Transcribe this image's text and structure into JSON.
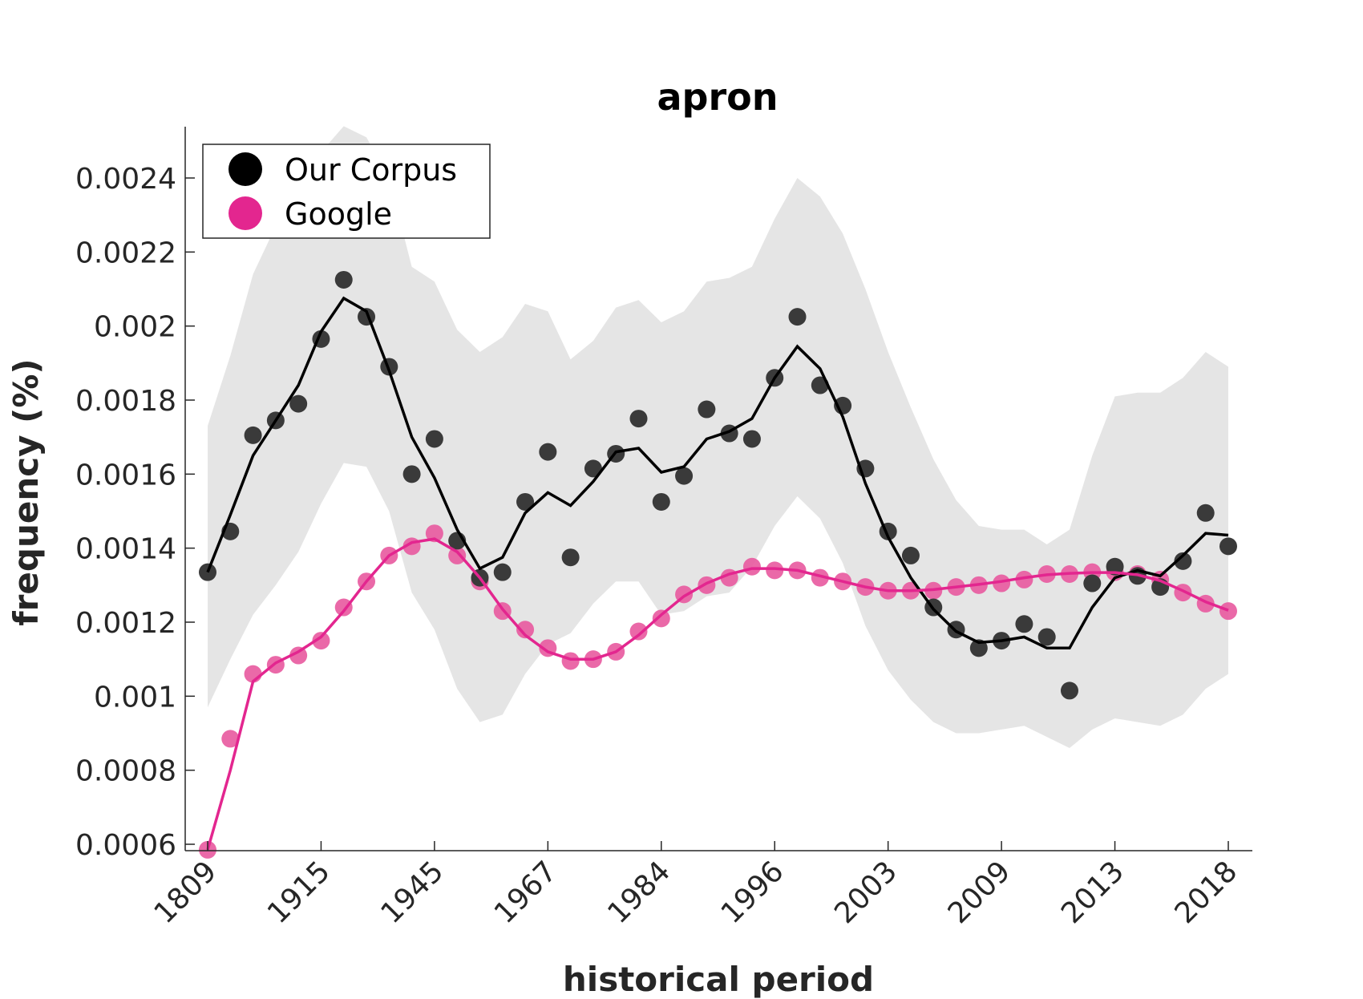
{
  "chart_data": {
    "type": "line",
    "title": "apron",
    "xlabel": "historical period",
    "ylabel": "frequency (%)",
    "ylim": [
      0.00058,
      0.00254
    ],
    "yticks": [
      0.0006,
      0.0008,
      0.001,
      0.0012,
      0.0014,
      0.0016,
      0.0018,
      0.002,
      0.0022,
      0.0024
    ],
    "ytick_labels": [
      "0.0006",
      "0.0008",
      "0.001",
      "0.0012",
      "0.0014",
      "0.0016",
      "0.0018",
      "0.002",
      "0.0022",
      "0.0024"
    ],
    "xtick_labels": [
      "1809",
      "1915",
      "1945",
      "1967",
      "1984",
      "1996",
      "2003",
      "2009",
      "2013",
      "2018"
    ],
    "xtick_positions": [
      0,
      5,
      10,
      15,
      20,
      25,
      30,
      35,
      40,
      45
    ],
    "n_points": 46,
    "grid": false,
    "legend_position": "top-left",
    "series": [
      {
        "name": "Our Corpus",
        "color": "#000000",
        "marker_color": "#3a3a3a",
        "points": [
          0.001335,
          0.001445,
          0.001705,
          0.001745,
          0.00179,
          0.001965,
          0.002125,
          0.002025,
          0.00189,
          0.0016,
          0.001695,
          0.00142,
          0.00132,
          0.001335,
          0.001525,
          0.00166,
          0.001375,
          0.001615,
          0.001655,
          0.00175,
          0.001525,
          0.001595,
          0.001775,
          0.00171,
          0.001695,
          0.00186,
          0.002025,
          0.00184,
          0.001785,
          0.001615,
          0.001445,
          0.00138,
          0.00124,
          0.00118,
          0.00113,
          0.00115,
          0.001195,
          0.00116,
          0.001015,
          0.001305,
          0.00135,
          0.001325,
          0.001295,
          0.001365,
          0.001495,
          0.001405
        ],
        "line": [
          0.001335,
          0.00149,
          0.00165,
          0.001745,
          0.00184,
          0.001985,
          0.002075,
          0.00204,
          0.00188,
          0.0017,
          0.00159,
          0.00145,
          0.001345,
          0.001375,
          0.001495,
          0.00155,
          0.001515,
          0.00158,
          0.00166,
          0.00167,
          0.001605,
          0.00162,
          0.001695,
          0.001715,
          0.00175,
          0.00186,
          0.001945,
          0.001885,
          0.001755,
          0.001575,
          0.00143,
          0.00132,
          0.001235,
          0.001175,
          0.001145,
          0.00115,
          0.00116,
          0.00113,
          0.00113,
          0.00124,
          0.00132,
          0.00134,
          0.001325,
          0.00138,
          0.00144,
          0.001435
        ],
        "band_upper": [
          0.00173,
          0.00192,
          0.00214,
          0.00227,
          0.00238,
          0.00247,
          0.00254,
          0.00251,
          0.0024,
          0.00216,
          0.00212,
          0.00199,
          0.00193,
          0.00197,
          0.00206,
          0.00204,
          0.00191,
          0.00196,
          0.00205,
          0.00207,
          0.00201,
          0.00204,
          0.00212,
          0.00213,
          0.00216,
          0.00229,
          0.0024,
          0.00235,
          0.00225,
          0.0021,
          0.00193,
          0.00178,
          0.00164,
          0.00153,
          0.00146,
          0.00145,
          0.00145,
          0.00141,
          0.00145,
          0.00165,
          0.00181,
          0.00182,
          0.00182,
          0.00186,
          0.00193,
          0.00189
        ],
        "band_lower": [
          0.00097,
          0.0011,
          0.00122,
          0.0013,
          0.00139,
          0.00152,
          0.00163,
          0.00162,
          0.0015,
          0.00128,
          0.00118,
          0.00102,
          0.00093,
          0.00095,
          0.00106,
          0.00114,
          0.00117,
          0.00125,
          0.00131,
          0.00131,
          0.00122,
          0.00123,
          0.00127,
          0.00128,
          0.00135,
          0.00146,
          0.00154,
          0.00148,
          0.00136,
          0.00119,
          0.00107,
          0.00099,
          0.00093,
          0.0009,
          0.0009,
          0.00091,
          0.00092,
          0.00089,
          0.00086,
          0.00091,
          0.00094,
          0.00093,
          0.00092,
          0.00095,
          0.00102,
          0.00106
        ]
      },
      {
        "name": "Google",
        "color": "#e3268f",
        "marker_color": "#e8599f",
        "points": [
          0.000585,
          0.000885,
          0.00106,
          0.001085,
          0.00111,
          0.00115,
          0.00124,
          0.00131,
          0.00138,
          0.001405,
          0.00144,
          0.00138,
          0.00131,
          0.00123,
          0.00118,
          0.00113,
          0.001095,
          0.0011,
          0.00112,
          0.001175,
          0.00121,
          0.001275,
          0.0013,
          0.00132,
          0.00135,
          0.00134,
          0.00134,
          0.00132,
          0.00131,
          0.001295,
          0.001285,
          0.001285,
          0.001285,
          0.001295,
          0.0013,
          0.001305,
          0.001315,
          0.00133,
          0.00133,
          0.001335,
          0.001335,
          0.00133,
          0.001315,
          0.00128,
          0.00125,
          0.00123
        ],
        "line": [
          0.000585,
          0.0008,
          0.00104,
          0.00109,
          0.00112,
          0.00116,
          0.00123,
          0.00131,
          0.00138,
          0.001415,
          0.001425,
          0.00139,
          0.00132,
          0.001235,
          0.001165,
          0.00112,
          0.0011,
          0.0011,
          0.00112,
          0.001165,
          0.00122,
          0.00127,
          0.001305,
          0.00133,
          0.001345,
          0.001345,
          0.00134,
          0.001325,
          0.00131,
          0.001295,
          0.001285,
          0.001285,
          0.001288,
          0.001295,
          0.001302,
          0.00131,
          0.00132,
          0.001328,
          0.001332,
          0.001334,
          0.001334,
          0.001328,
          0.001312,
          0.001285,
          0.001255,
          0.001232
        ]
      }
    ]
  }
}
